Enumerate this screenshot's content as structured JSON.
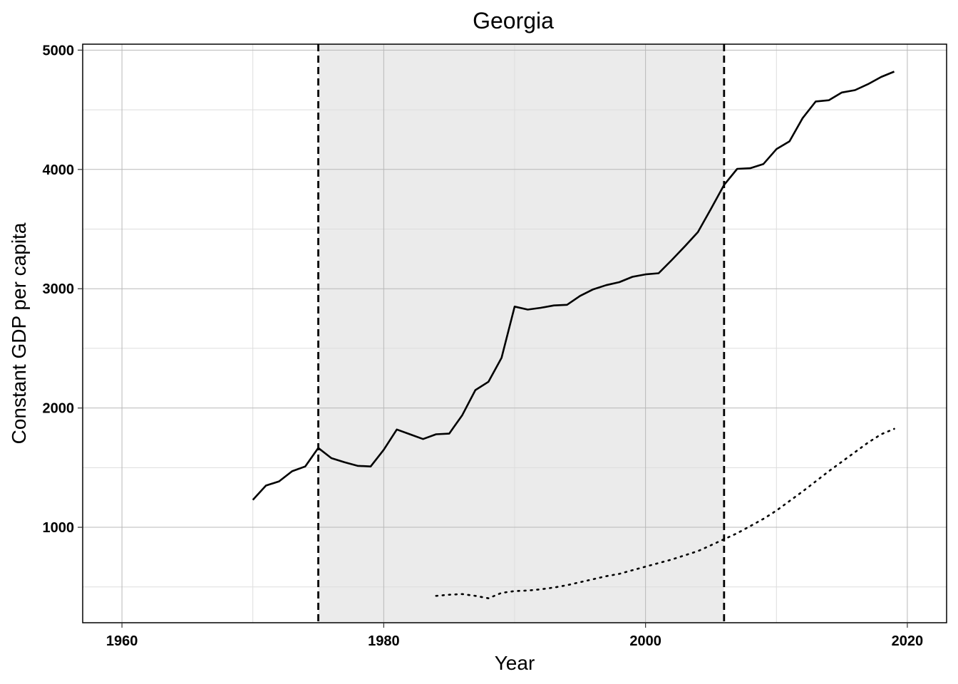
{
  "chart_data": {
    "type": "line",
    "title": "Georgia",
    "xlabel": "Year",
    "ylabel": "Constant GDP per capita",
    "xlim": [
      1957,
      2023
    ],
    "ylim": [
      200,
      5050
    ],
    "xticks": [
      1960,
      1980,
      2000,
      2020
    ],
    "yticks": [
      1000,
      2000,
      3000,
      4000,
      5000
    ],
    "grid": true,
    "legend": "none",
    "shaded_region": {
      "x_start": 1975,
      "x_end": 2006,
      "color": "#ebebeb"
    },
    "vlines": [
      1975,
      2006
    ],
    "series": [
      {
        "style": "solid",
        "color": "#000000",
        "x": [
          1970,
          1971,
          1972,
          1973,
          1974,
          1975,
          1976,
          1977,
          1978,
          1979,
          1980,
          1981,
          1982,
          1983,
          1984,
          1985,
          1986,
          1987,
          1988,
          1989,
          1990,
          1991,
          1992,
          1993,
          1994,
          1995,
          1996,
          1997,
          1998,
          1999,
          2000,
          2001,
          2002,
          2003,
          2004,
          2005,
          2006,
          2007,
          2008,
          2009,
          2010,
          2011,
          2012,
          2013,
          2014,
          2015,
          2016,
          2017,
          2018,
          2019
        ],
        "y": [
          1230,
          1350,
          1385,
          1470,
          1510,
          1665,
          1580,
          1545,
          1515,
          1510,
          1650,
          1820,
          1780,
          1740,
          1780,
          1785,
          1940,
          2150,
          2220,
          2420,
          2850,
          2825,
          2840,
          2860,
          2865,
          2940,
          2995,
          3030,
          3055,
          3100,
          3120,
          3130,
          3240,
          3355,
          3475,
          3670,
          3870,
          4005,
          4010,
          4045,
          4170,
          4235,
          4430,
          4570,
          4580,
          4645,
          4665,
          4715,
          4775,
          4820
        ]
      },
      {
        "style": "dotted",
        "color": "#000000",
        "x": [
          1984,
          1985,
          1986,
          1987,
          1988,
          1989,
          1990,
          1991,
          1992,
          1993,
          1994,
          1995,
          1996,
          1997,
          1998,
          1999,
          2000,
          2001,
          2002,
          2003,
          2004,
          2005,
          2006,
          2007,
          2008,
          2009,
          2010,
          2011,
          2012,
          2013,
          2014,
          2015,
          2016,
          2017,
          2018,
          2019
        ],
        "y": [
          425,
          435,
          440,
          425,
          405,
          450,
          465,
          470,
          480,
          495,
          515,
          540,
          565,
          590,
          610,
          640,
          670,
          700,
          730,
          765,
          800,
          850,
          900,
          950,
          1010,
          1070,
          1140,
          1220,
          1300,
          1385,
          1470,
          1550,
          1630,
          1710,
          1780,
          1825
        ]
      }
    ]
  }
}
